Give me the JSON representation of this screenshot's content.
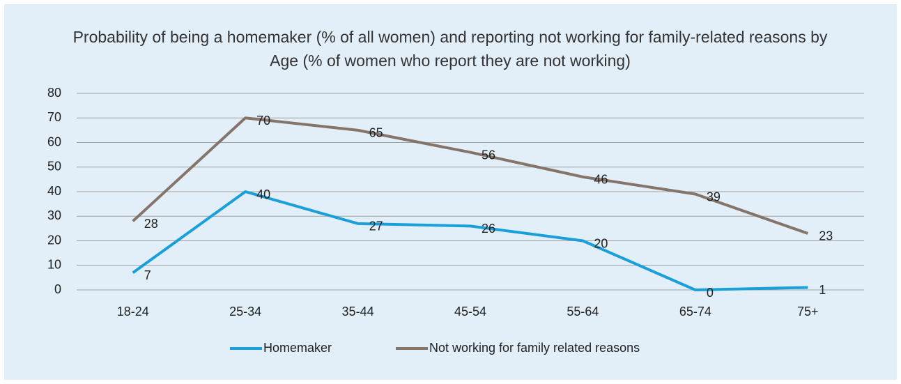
{
  "chart_data": {
    "type": "line",
    "title": "Probability of being a homemaker (% of all women) and reporting not working for family-related reasons by Age (% of women who report they are not working)",
    "categories": [
      "18-24",
      "25-34",
      "35-44",
      "45-54",
      "55-64",
      "65-74",
      "75+"
    ],
    "series": [
      {
        "name": "Homemaker",
        "color": "#1a9fd9",
        "values": [
          7,
          40,
          27,
          26,
          20,
          0,
          1
        ]
      },
      {
        "name": "Not working for family related reasons",
        "color": "#857469",
        "values": [
          28,
          70,
          65,
          56,
          46,
          39,
          23
        ]
      }
    ],
    "ylim": [
      0,
      80
    ],
    "yticks": [
      0,
      10,
      20,
      30,
      40,
      50,
      60,
      70,
      80
    ],
    "grid": true,
    "legend": "bottom"
  }
}
